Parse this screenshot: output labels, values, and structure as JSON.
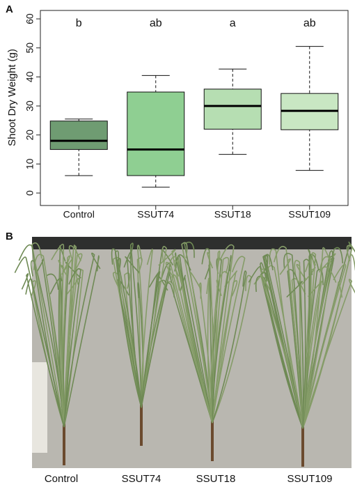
{
  "chart_data": {
    "type": "box",
    "ylabel": "Shoot Dry Weight (g)",
    "categories": [
      "Control",
      "SSUT74",
      "SSUT18",
      "SSUT109"
    ],
    "boxes": [
      {
        "min": 6,
        "q1": 15,
        "median": 18,
        "q3": 24.8,
        "max": 25.5,
        "color": "#6f9c72",
        "letter": "b"
      },
      {
        "min": 2,
        "q1": 6,
        "median": 15,
        "q3": 34.8,
        "max": 40.5,
        "color": "#8fcf92",
        "letter": "ab"
      },
      {
        "min": 13.3,
        "q1": 22,
        "median": 30,
        "q3": 35.8,
        "max": 42.7,
        "color": "#b6deb2",
        "letter": "a"
      },
      {
        "min": 7.8,
        "q1": 21.8,
        "median": 28.3,
        "q3": 34.3,
        "max": 50.5,
        "color": "#c9e7c3",
        "letter": "ab"
      }
    ],
    "ylim": [
      -4.3,
      62.9
    ],
    "yticks": [
      0,
      10,
      20,
      30,
      40,
      50,
      60
    ]
  },
  "figure": {
    "panel_a_label": "A",
    "panel_b_label": "B",
    "photo_labels": [
      "Control",
      "SSUT74",
      "SSUT18",
      "SSUT109"
    ]
  }
}
